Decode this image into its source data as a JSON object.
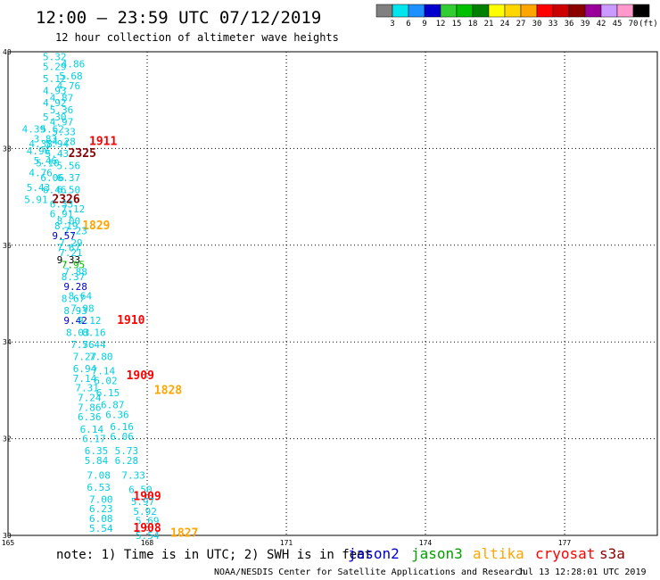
{
  "header": {
    "title": "12:00 – 23:59 UTC 07/12/2019",
    "subtitle": "12 hour collection of altimeter wave heights"
  },
  "footer": {
    "note": "note: 1) Time is in UTC; 2) SWH is in feet",
    "credit": "NOAA/NESDIS Center for Satellite Applications and Research",
    "timestamp": "Jul 13 12:28:01 UTC 2019"
  },
  "legend": {
    "unit": "(ft)",
    "swatches": [
      {
        "label": "3",
        "color": "#808080"
      },
      {
        "label": "6",
        "color": "#00e5ee"
      },
      {
        "label": "9",
        "color": "#1e90ff"
      },
      {
        "label": "12",
        "color": "#0000cd"
      },
      {
        "label": "15",
        "color": "#32cd32"
      },
      {
        "label": "18",
        "color": "#00c000"
      },
      {
        "label": "21",
        "color": "#008000"
      },
      {
        "label": "24",
        "color": "#ffff00"
      },
      {
        "label": "27",
        "color": "#ffd700"
      },
      {
        "label": "30",
        "color": "#ffa500"
      },
      {
        "label": "33",
        "color": "#ff0000"
      },
      {
        "label": "36",
        "color": "#cc0000"
      },
      {
        "label": "39",
        "color": "#8b0000"
      },
      {
        "label": "42",
        "color": "#990099"
      },
      {
        "label": "45",
        "color": "#cc99ff"
      },
      {
        "label": "70",
        "color": "#ff99cc"
      },
      {
        "label": "",
        "color": "#000000"
      }
    ]
  },
  "satellites": [
    {
      "name": "jason2",
      "color": "#0000cd"
    },
    {
      "name": "jason3",
      "color": "#00a000"
    },
    {
      "name": "altika",
      "color": "#ffa500"
    },
    {
      "name": "cryosat",
      "color": "#ff0000"
    },
    {
      "name": "s3a",
      "color": "#8b0000"
    }
  ],
  "chart_data": {
    "type": "scatter",
    "xlim": [
      165,
      179
    ],
    "ylim": [
      30,
      40
    ],
    "x_ticks": [
      "165",
      "168",
      "171",
      "174",
      "177"
    ],
    "y_ticks": [
      "30",
      "32",
      "34",
      "36",
      "38",
      "40"
    ],
    "grid": true,
    "points": [
      {
        "x": 165.75,
        "y": 39.9,
        "label": "5.32",
        "color": "#00d0e0"
      },
      {
        "x": 166.15,
        "y": 39.75,
        "label": "4.86",
        "color": "#00d0e0"
      },
      {
        "x": 165.75,
        "y": 39.7,
        "label": "5.29",
        "color": "#00d0e0"
      },
      {
        "x": 166.1,
        "y": 39.5,
        "label": "5.68",
        "color": "#00d0e0"
      },
      {
        "x": 165.75,
        "y": 39.45,
        "label": "5.12",
        "color": "#00d0e0"
      },
      {
        "x": 166.05,
        "y": 39.3,
        "label": "4.76",
        "color": "#00d0e0"
      },
      {
        "x": 165.75,
        "y": 39.2,
        "label": "4.93",
        "color": "#00d0e0"
      },
      {
        "x": 165.9,
        "y": 39.05,
        "label": "4.87",
        "color": "#00d0e0"
      },
      {
        "x": 165.75,
        "y": 38.95,
        "label": "4.92",
        "color": "#00d0e0"
      },
      {
        "x": 165.9,
        "y": 38.8,
        "label": "5.36",
        "color": "#00d0e0"
      },
      {
        "x": 165.75,
        "y": 38.65,
        "label": "5.30",
        "color": "#00d0e0"
      },
      {
        "x": 165.9,
        "y": 38.55,
        "label": "4.97",
        "color": "#00d0e0"
      },
      {
        "x": 165.3,
        "y": 38.4,
        "label": "4.39",
        "color": "#00d0e0"
      },
      {
        "x": 165.7,
        "y": 38.4,
        "label": "5.62",
        "color": "#00d0e0"
      },
      {
        "x": 165.95,
        "y": 38.35,
        "label": "5.33",
        "color": "#00d0e0"
      },
      {
        "x": 165.55,
        "y": 38.2,
        "label": "3.83",
        "color": "#00d0e0"
      },
      {
        "x": 165.95,
        "y": 38.15,
        "label": "4.28",
        "color": "#00d0e0"
      },
      {
        "x": 166.75,
        "y": 38.15,
        "label": "1911",
        "color": "#ff0000"
      },
      {
        "x": 165.45,
        "y": 38.1,
        "label": "4.38",
        "color": "#00d0e0"
      },
      {
        "x": 165.8,
        "y": 38.1,
        "label": "5.94",
        "color": "#00d0e0"
      },
      {
        "x": 165.4,
        "y": 37.95,
        "label": "4.96",
        "color": "#00d0e0"
      },
      {
        "x": 165.8,
        "y": 37.9,
        "label": "5.43",
        "color": "#00d0e0"
      },
      {
        "x": 166.3,
        "y": 37.9,
        "label": "2325",
        "color": "#8b0000"
      },
      {
        "x": 165.55,
        "y": 37.75,
        "label": "5.46",
        "color": "#00d0e0"
      },
      {
        "x": 165.6,
        "y": 37.7,
        "label": "5.10",
        "color": "#00d0e0"
      },
      {
        "x": 166.05,
        "y": 37.65,
        "label": "5.56",
        "color": "#00d0e0"
      },
      {
        "x": 165.45,
        "y": 37.5,
        "label": "4.76",
        "color": "#00d0e0"
      },
      {
        "x": 165.7,
        "y": 37.4,
        "label": "6.06",
        "color": "#00d0e0"
      },
      {
        "x": 166.05,
        "y": 37.4,
        "label": "6.37",
        "color": "#00d0e0"
      },
      {
        "x": 165.4,
        "y": 37.2,
        "label": "5.43",
        "color": "#00d0e0"
      },
      {
        "x": 165.75,
        "y": 37.15,
        "label": "6.46",
        "color": "#00d0e0"
      },
      {
        "x": 166.05,
        "y": 37.15,
        "label": "6.50",
        "color": "#00d0e0"
      },
      {
        "x": 165.35,
        "y": 36.95,
        "label": "5.91",
        "color": "#00d0e0"
      },
      {
        "x": 165.95,
        "y": 36.95,
        "label": "2326",
        "color": "#8b0000"
      },
      {
        "x": 165.9,
        "y": 36.85,
        "label": "6.33",
        "color": "#00d0e0"
      },
      {
        "x": 166.15,
        "y": 36.75,
        "label": "7.12",
        "color": "#00d0e0"
      },
      {
        "x": 165.9,
        "y": 36.65,
        "label": "6.91",
        "color": "#00d0e0"
      },
      {
        "x": 166.05,
        "y": 36.5,
        "label": "8.00",
        "color": "#00d0e0"
      },
      {
        "x": 166.6,
        "y": 36.4,
        "label": "1829",
        "color": "#ffa500"
      },
      {
        "x": 166.0,
        "y": 36.4,
        "label": "8.19",
        "color": "#00d0e0"
      },
      {
        "x": 166.2,
        "y": 36.3,
        "label": "7.23",
        "color": "#00d0e0"
      },
      {
        "x": 165.95,
        "y": 36.2,
        "label": "9.57",
        "color": "#0000cd"
      },
      {
        "x": 166.1,
        "y": 36.05,
        "label": "7.29",
        "color": "#00d0e0"
      },
      {
        "x": 166.05,
        "y": 35.95,
        "label": "7.67",
        "color": "#00d0e0"
      },
      {
        "x": 166.1,
        "y": 35.85,
        "label": "7.21",
        "color": "#00d0e0"
      },
      {
        "x": 166.05,
        "y": 35.7,
        "label": "9.33",
        "color": "#000000"
      },
      {
        "x": 166.15,
        "y": 35.6,
        "label": "7.95",
        "color": "#00c000"
      },
      {
        "x": 166.2,
        "y": 35.45,
        "label": "7.88",
        "color": "#00d0e0"
      },
      {
        "x": 166.15,
        "y": 35.35,
        "label": "8.37",
        "color": "#00d0e0"
      },
      {
        "x": 166.2,
        "y": 35.15,
        "label": "9.28",
        "color": "#0000cd"
      },
      {
        "x": 166.3,
        "y": 34.95,
        "label": "8.64",
        "color": "#00d0e0"
      },
      {
        "x": 166.15,
        "y": 34.9,
        "label": "8.67",
        "color": "#00d0e0"
      },
      {
        "x": 166.35,
        "y": 34.7,
        "label": "7.98",
        "color": "#00d0e0"
      },
      {
        "x": 166.2,
        "y": 34.65,
        "label": "8.93",
        "color": "#00d0e0"
      },
      {
        "x": 166.2,
        "y": 34.45,
        "label": "9.42",
        "color": "#0000cd"
      },
      {
        "x": 166.5,
        "y": 34.45,
        "label": "9.12",
        "color": "#00d0e0"
      },
      {
        "x": 167.35,
        "y": 34.45,
        "label": "1910",
        "color": "#ff0000"
      },
      {
        "x": 166.25,
        "y": 34.2,
        "label": "8.03",
        "color": "#00d0e0"
      },
      {
        "x": 166.6,
        "y": 34.2,
        "label": "8.16",
        "color": "#00d0e0"
      },
      {
        "x": 166.35,
        "y": 33.95,
        "label": "7.56",
        "color": "#00d0e0"
      },
      {
        "x": 166.6,
        "y": 33.95,
        "label": "7.44",
        "color": "#00d0e0"
      },
      {
        "x": 166.4,
        "y": 33.7,
        "label": "7.27",
        "color": "#00d0e0"
      },
      {
        "x": 166.75,
        "y": 33.7,
        "label": "7.80",
        "color": "#00d0e0"
      },
      {
        "x": 166.4,
        "y": 33.45,
        "label": "6.94",
        "color": "#00d0e0"
      },
      {
        "x": 166.8,
        "y": 33.4,
        "label": "7.14",
        "color": "#00d0e0"
      },
      {
        "x": 167.55,
        "y": 33.3,
        "label": "1909",
        "color": "#ff0000"
      },
      {
        "x": 166.4,
        "y": 33.25,
        "label": "7.14",
        "color": "#00d0e0"
      },
      {
        "x": 166.85,
        "y": 33.2,
        "label": "6.02",
        "color": "#00d0e0"
      },
      {
        "x": 166.45,
        "y": 33.05,
        "label": "7.31",
        "color": "#00d0e0"
      },
      {
        "x": 168.15,
        "y": 33.0,
        "label": "1828",
        "color": "#ffa500"
      },
      {
        "x": 166.9,
        "y": 32.95,
        "label": "6.15",
        "color": "#00d0e0"
      },
      {
        "x": 166.5,
        "y": 32.85,
        "label": "7.24",
        "color": "#00d0e0"
      },
      {
        "x": 167.0,
        "y": 32.7,
        "label": "6.87",
        "color": "#00d0e0"
      },
      {
        "x": 166.5,
        "y": 32.65,
        "label": "7.86",
        "color": "#00d0e0"
      },
      {
        "x": 167.1,
        "y": 32.5,
        "label": "6.36",
        "color": "#00d0e0"
      },
      {
        "x": 166.5,
        "y": 32.45,
        "label": "6.36",
        "color": "#00d0e0"
      },
      {
        "x": 167.2,
        "y": 32.25,
        "label": "6.16",
        "color": "#00d0e0"
      },
      {
        "x": 166.55,
        "y": 32.2,
        "label": "6.14",
        "color": "#00d0e0"
      },
      {
        "x": 167.2,
        "y": 32.05,
        "label": "6.06",
        "color": "#00d0e0"
      },
      {
        "x": 166.6,
        "y": 32.0,
        "label": "6.17",
        "color": "#00d0e0"
      },
      {
        "x": 166.65,
        "y": 31.75,
        "label": "6.35",
        "color": "#00d0e0"
      },
      {
        "x": 167.3,
        "y": 31.75,
        "label": "5.73",
        "color": "#00d0e0"
      },
      {
        "x": 166.65,
        "y": 31.55,
        "label": "5.84",
        "color": "#00d0e0"
      },
      {
        "x": 167.3,
        "y": 31.55,
        "label": "6.28",
        "color": "#00d0e0"
      },
      {
        "x": 166.7,
        "y": 31.25,
        "label": "7.08",
        "color": "#00d0e0"
      },
      {
        "x": 167.45,
        "y": 31.25,
        "label": "7.33",
        "color": "#00d0e0"
      },
      {
        "x": 166.7,
        "y": 31.0,
        "label": "6.53",
        "color": "#00d0e0"
      },
      {
        "x": 167.6,
        "y": 30.95,
        "label": "6.50",
        "color": "#00d0e0"
      },
      {
        "x": 166.75,
        "y": 30.75,
        "label": "7.00",
        "color": "#00d0e0"
      },
      {
        "x": 167.7,
        "y": 30.8,
        "label": "1909",
        "color": "#ff0000"
      },
      {
        "x": 167.65,
        "y": 30.7,
        "label": "5.97",
        "color": "#00d0e0"
      },
      {
        "x": 166.75,
        "y": 30.55,
        "label": "6.23",
        "color": "#00d0e0"
      },
      {
        "x": 167.7,
        "y": 30.5,
        "label": "5.92",
        "color": "#00d0e0"
      },
      {
        "x": 166.75,
        "y": 30.35,
        "label": "6.08",
        "color": "#00d0e0"
      },
      {
        "x": 167.75,
        "y": 30.3,
        "label": "5.69",
        "color": "#00d0e0"
      },
      {
        "x": 166.75,
        "y": 30.15,
        "label": "5.54",
        "color": "#00d0e0"
      },
      {
        "x": 167.7,
        "y": 30.15,
        "label": "1908",
        "color": "#ff0000"
      },
      {
        "x": 167.75,
        "y": 30.0,
        "label": "5.54",
        "color": "#00d0e0"
      },
      {
        "x": 168.5,
        "y": 30.05,
        "label": "1827",
        "color": "#ffa500"
      }
    ]
  }
}
